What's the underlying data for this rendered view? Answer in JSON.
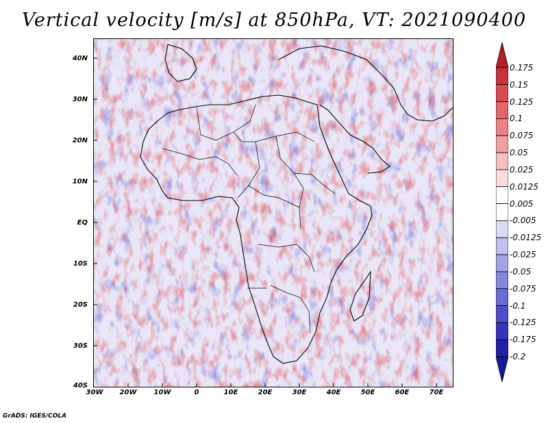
{
  "title": "Vertical velocity [m/s] at 850hPa, VT: 2021090400",
  "credit": "GrADS: IGES/COLA",
  "map": {
    "lon_range": [
      -30,
      75
    ],
    "lat_range": [
      -40,
      45
    ],
    "x_ticks": [
      "30W",
      "20W",
      "10W",
      "0",
      "10E",
      "20E",
      "30E",
      "40E",
      "50E",
      "60E",
      "70E"
    ],
    "y_ticks": [
      "40N",
      "30N",
      "20N",
      "10N",
      "EQ",
      "10S",
      "20S",
      "30S",
      "40S"
    ],
    "field": "vertical velocity",
    "units": "m/s",
    "level": "850hPa"
  },
  "colorbar": {
    "labels": [
      "0.175",
      "0.15",
      "0.125",
      "0.1",
      "0.075",
      "0.05",
      "0.025",
      "0.0125",
      "0.005",
      "-0.005",
      "-0.0125",
      "-0.025",
      "-0.05",
      "-0.075",
      "-0.1",
      "-0.125",
      "-0.175",
      "-0.2"
    ],
    "colors": [
      "#b41e24",
      "#c8323a",
      "#d94a4f",
      "#e46468",
      "#ec8285",
      "#f2a0a2",
      "#f7bec0",
      "#fbdcdd",
      "#ffffff",
      "#ffffff",
      "#dcdcf6",
      "#c0c0ee",
      "#a3a3e6",
      "#8686dd",
      "#6a6ad3",
      "#4e4ec9",
      "#3434bd",
      "#2020a8",
      "#18189a"
    ]
  }
}
